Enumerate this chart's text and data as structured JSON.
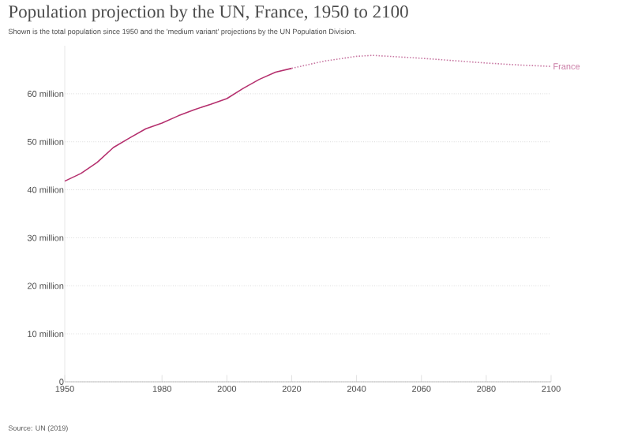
{
  "chart_data": {
    "type": "line",
    "title": "Population projection by the UN, France, 1950 to 2100",
    "subtitle": "Shown is the total population since 1950 and the 'medium variant' projections by the UN Population Division.",
    "annotations": [
      "Source: UN (2019)"
    ],
    "series": [
      {
        "color": "#b5306e",
        "line_style": "solid",
        "x": [
          1950,
          1955,
          1960,
          1965,
          1970,
          1975,
          1980,
          1985,
          1990,
          1995,
          2000,
          2005,
          2010,
          2015,
          2020
        ],
        "values": [
          41.8,
          43.4,
          45.7,
          48.8,
          50.8,
          52.7,
          53.9,
          55.4,
          56.7,
          57.8,
          59.0,
          61.1,
          63.0,
          64.5,
          65.3
        ]
      },
      {
        "name": "France",
        "color": "#c97aa4",
        "line_style": "dotted",
        "x": [
          2020,
          2030,
          2040,
          2045,
          2050,
          2060,
          2070,
          2080,
          2090,
          2100
        ],
        "values": [
          65.3,
          66.8,
          67.8,
          68.0,
          67.8,
          67.4,
          66.9,
          66.4,
          66.0,
          65.7
        ]
      }
    ],
    "xlim": [
      1950,
      2100
    ],
    "xticks": [
      1950,
      1980,
      2000,
      2020,
      2040,
      2060,
      2080,
      2100
    ],
    "ylim": [
      0,
      70
    ],
    "yticks": [
      0,
      {
        "value": 10,
        "label": "10 million"
      },
      {
        "value": 20,
        "label": "20 million"
      },
      {
        "value": 30,
        "label": "30 million"
      },
      {
        "value": 40,
        "label": "40 million"
      },
      {
        "value": 50,
        "label": "50 million"
      },
      {
        "value": 60,
        "label": "60 million"
      }
    ],
    "grid": "y",
    "marker": "none"
  }
}
